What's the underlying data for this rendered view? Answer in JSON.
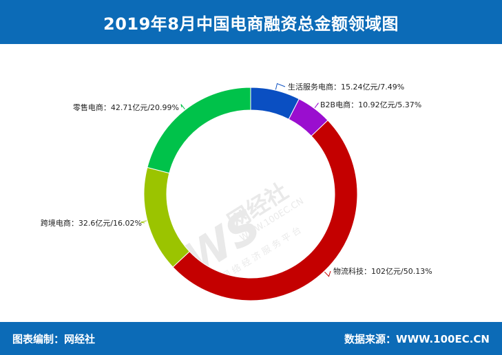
{
  "title": "2019年8月中国电商融资总金额领域图",
  "footer": {
    "left": "图表编制：网经社",
    "right": "数据来源：WWW.100EC.CN"
  },
  "watermark": {
    "logo": "WS",
    "brand": "网经社",
    "url": "WWW.100EC.CN",
    "slogan": "网 络 经 济 服 务 平 台"
  },
  "chart_data": {
    "type": "pie",
    "donut": true,
    "unit": "亿元",
    "slices": [
      {
        "name": "生活服务电商",
        "value": 15.24,
        "percent": 7.49,
        "label": "生活服务电商：15.24亿元/7.49%",
        "color": "#0a4fc2"
      },
      {
        "name": "B2B电商",
        "value": 10.92,
        "percent": 5.37,
        "label": "B2B电商：10.92亿元/5.37%",
        "color": "#9a0ecf"
      },
      {
        "name": "物流科技",
        "value": 102,
        "percent": 50.13,
        "label": "物流科技：102亿元/50.13%",
        "color": "#c40000"
      },
      {
        "name": "跨境电商",
        "value": 32.6,
        "percent": 16.02,
        "label": "跨境电商：32.6亿元/16.02%",
        "color": "#9bc400"
      },
      {
        "name": "零售电商",
        "value": 42.71,
        "percent": 20.99,
        "label": "零售电商：42.71亿元/20.99%",
        "color": "#00c24a"
      }
    ]
  }
}
